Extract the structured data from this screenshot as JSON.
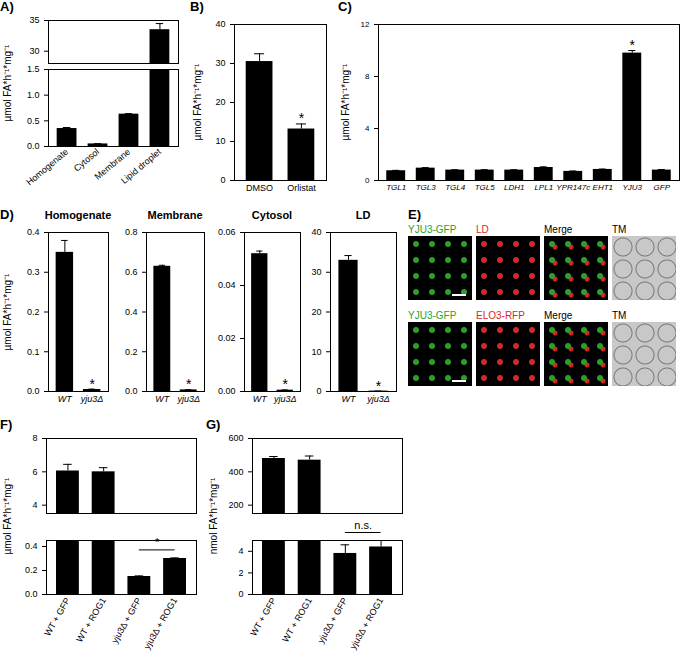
{
  "chart_data": [
    {
      "type": "bar",
      "panel": "A)",
      "ylabel": "µmol FA*h⁻¹*mg⁻¹",
      "categories": [
        "Homogenate",
        "Cytosol",
        "Membrane",
        "Lipid droplet"
      ],
      "values": [
        0.35,
        0.05,
        0.63,
        33.5
      ],
      "errors": [
        0.02,
        0.005,
        0.01,
        1.0
      ],
      "color": "#000000",
      "ylim": [
        0,
        35
      ],
      "axis_break": [
        1.5,
        28
      ],
      "yticks": [
        {
          "value": 0,
          "label": "0.0"
        },
        0.5,
        {
          "value": 1,
          "label": "1.0"
        },
        1.5,
        30,
        35
      ]
    },
    {
      "type": "bar",
      "panel": "B)",
      "ylabel": "µmol FA*h⁻¹*mg⁻¹",
      "categories": [
        "DMSO",
        "Orlistat"
      ],
      "values": [
        30.5,
        13.2
      ],
      "errors": [
        2.0,
        1.3
      ],
      "color": "#000000",
      "ylim": [
        0,
        40
      ],
      "yticks": [
        0,
        10,
        20,
        30,
        40
      ],
      "annotations": [
        {
          "category": "Orlistat",
          "text": "*"
        }
      ]
    },
    {
      "type": "bar",
      "panel": "C)",
      "ylabel": "µmol FA*h⁻¹*mg⁻¹",
      "categories": [
        "TGL1",
        "TGL3",
        "TGL4",
        "TGL5",
        "LDH1",
        "LPL1",
        "YPR147c",
        "EHT1",
        "YJU3",
        "GFP"
      ],
      "values": [
        0.75,
        0.95,
        0.8,
        0.8,
        0.8,
        1.0,
        0.7,
        0.85,
        9.8,
        0.8
      ],
      "errors": [
        0.03,
        0.04,
        0.03,
        0.03,
        0.03,
        0.05,
        0.03,
        0.03,
        0.2,
        0.04
      ],
      "color": "#000000",
      "ylim": [
        0,
        12
      ],
      "yticks": [
        0,
        4,
        8,
        12
      ],
      "annotations": [
        {
          "category": "YJU3",
          "text": "*"
        }
      ]
    },
    {
      "type": "bar",
      "panel": "D)",
      "title": "Homogenate",
      "ylabel": "µmol FA*h⁻¹*mg⁻¹",
      "categories": [
        "WT",
        "yju3Δ"
      ],
      "values": [
        0.35,
        0.005
      ],
      "errors": [
        0.03,
        0.001
      ],
      "color": "#000000",
      "ylim": [
        0,
        0.4
      ],
      "yticks": [
        {
          "value": 0,
          "label": "0.0"
        },
        0.1,
        0.2,
        0.3,
        0.4
      ],
      "annotations": [
        {
          "category": "yju3Δ",
          "text": "*"
        }
      ]
    },
    {
      "type": "bar",
      "title": "Membrane",
      "categories": [
        "WT",
        "yju3Δ"
      ],
      "values": [
        0.63,
        0.008
      ],
      "errors": [
        0.005,
        0.001
      ],
      "color": "#000000",
      "ylim": [
        0,
        0.8
      ],
      "yticks": [
        {
          "value": 0,
          "label": "0.0"
        },
        0.2,
        0.4,
        0.6,
        0.8
      ],
      "annotations": [
        {
          "category": "yju3Δ",
          "text": "*"
        }
      ]
    },
    {
      "type": "bar",
      "title": "Cytosol",
      "categories": [
        "WT",
        "yju3Δ"
      ],
      "values": [
        0.052,
        0.0005
      ],
      "errors": [
        0.001,
        0.0001
      ],
      "color": "#000000",
      "ylim": [
        0,
        0.06
      ],
      "yticks": [
        {
          "value": 0,
          "label": "0.00"
        },
        0.02,
        0.04,
        0.06
      ],
      "annotations": [
        {
          "category": "yju3Δ",
          "text": "*"
        }
      ]
    },
    {
      "type": "bar",
      "title": "LD",
      "categories": [
        "WT",
        "yju3Δ"
      ],
      "values": [
        33,
        0.1
      ],
      "errors": [
        1.2,
        0.02
      ],
      "color": "#000000",
      "ylim": [
        0,
        40
      ],
      "yticks": [
        0,
        10,
        20,
        30,
        40
      ],
      "annotations": [
        {
          "category": "yju3Δ",
          "text": "*"
        }
      ]
    },
    {
      "type": "image_grid",
      "panel": "E)",
      "rows": [
        [
          {
            "label": "YJU3-GFP",
            "color": "#2ca02c"
          },
          {
            "label": "LD",
            "color": "#d62728"
          },
          {
            "label": "Merge",
            "color": "#000000"
          },
          {
            "label": "TM",
            "color": "#000000"
          }
        ],
        [
          {
            "label": "YJU3-GFP",
            "color": "#2ca02c"
          },
          {
            "label": "ELO3-RFP",
            "color": "#d62728"
          },
          {
            "label": "Merge",
            "color": "#000000"
          },
          {
            "label": "TM",
            "color": "#000000"
          }
        ]
      ]
    },
    {
      "type": "bar",
      "panel": "F)",
      "ylabel": "µmol FA*h⁻¹*mg⁻¹",
      "categories": [
        "WT + GFP",
        "WT + ROG1",
        "yju3Δ + GFP",
        "yju3Δ + ROG1"
      ],
      "values": [
        6.05,
        6.0,
        0.15,
        0.3
      ],
      "errors": [
        0.4,
        0.25,
        0.005,
        0.005
      ],
      "color": "#000000",
      "ylim": [
        0,
        8
      ],
      "axis_break": [
        0.45,
        3.5
      ],
      "yticks": [
        {
          "value": 0,
          "label": "0.0"
        },
        0.2,
        0.4,
        4,
        6,
        8
      ],
      "annotations": [
        {
          "categories": [
            "yju3Δ + GFP",
            "yju3Δ + ROG1"
          ],
          "text": "*"
        }
      ]
    },
    {
      "type": "bar",
      "panel": "G)",
      "ylabel": "nmol FA*h⁻¹*mg⁻¹",
      "categories": [
        "WT + GFP",
        "WT + ROG1",
        "yju3Δ + GFP",
        "yju3Δ + ROG1"
      ],
      "values": [
        480,
        470,
        3.8,
        4.4
      ],
      "errors": [
        12,
        25,
        0.8,
        0.6
      ],
      "color": "#000000",
      "ylim": [
        0,
        600
      ],
      "axis_break": [
        5,
        150
      ],
      "yticks": [
        0,
        2,
        4,
        200,
        400,
        600
      ],
      "annotations": [
        {
          "categories": [
            "yju3Δ + GFP",
            "yju3Δ + ROG1"
          ],
          "text": "n.s."
        }
      ]
    }
  ]
}
